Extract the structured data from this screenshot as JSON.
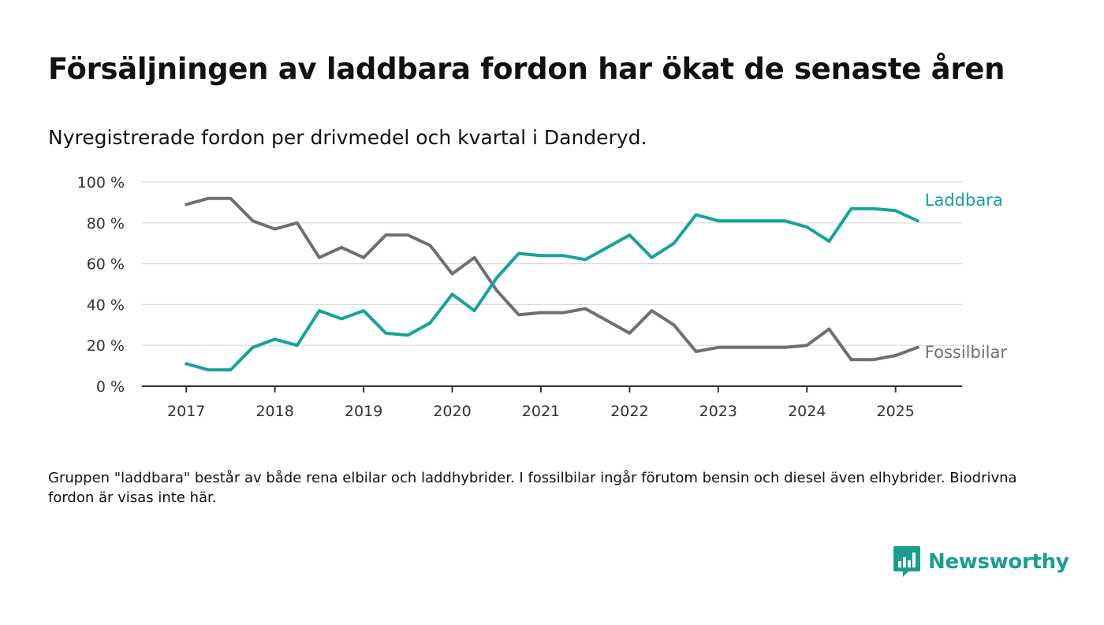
{
  "header": {
    "title": "Försäljningen av laddbara fordon har ökat de senaste åren",
    "subtitle": "Nyregistrerade fordon per drivmedel och kvartal i Danderyd."
  },
  "footer": {
    "note": "Gruppen \"laddbara\" består av både rena elbilar och laddhybrider. I fossilbilar ingår förutom bensin och diesel även elhybrider. Biodrivna fordon är visas inte här.",
    "brand_name": "Newsworthy"
  },
  "colors": {
    "laddbara": "#14a497",
    "fossil": "#6e6e78",
    "grid": "#d9d9d9",
    "axis": "#333333",
    "brand": "#199e8f"
  },
  "chart_data": {
    "type": "line",
    "title": "Försäljningen av laddbara fordon har ökat de senaste åren",
    "subtitle": "Nyregistrerade fordon per drivmedel och kvartal i Danderyd.",
    "xlabel": "",
    "ylabel": "",
    "ylim": [
      0,
      100
    ],
    "y_unit": "%",
    "y_ticks": [
      "0 %",
      "20 %",
      "40 %",
      "60 %",
      "80 %",
      "100 %"
    ],
    "x_ticks": [
      "2017",
      "2018",
      "2019",
      "2020",
      "2021",
      "2022",
      "2023",
      "2024",
      "2025"
    ],
    "xlim": [
      "2016-Q3",
      "2025-Q4"
    ],
    "grid": true,
    "legend": "inline labels at line ends",
    "x": [
      "2017-Q1",
      "2017-Q2",
      "2017-Q3",
      "2017-Q4",
      "2018-Q1",
      "2018-Q2",
      "2018-Q3",
      "2018-Q4",
      "2019-Q1",
      "2019-Q2",
      "2019-Q3",
      "2019-Q4",
      "2020-Q1",
      "2020-Q2",
      "2020-Q3",
      "2020-Q4",
      "2021-Q1",
      "2021-Q2",
      "2021-Q3",
      "2021-Q4",
      "2022-Q1",
      "2022-Q2",
      "2022-Q3",
      "2022-Q4",
      "2023-Q1",
      "2023-Q2",
      "2023-Q3",
      "2023-Q4",
      "2024-Q1",
      "2024-Q2",
      "2024-Q3",
      "2024-Q4",
      "2025-Q1",
      "2025-Q2"
    ],
    "series": [
      {
        "name": "Laddbara",
        "values": [
          11,
          8,
          8,
          19,
          23,
          20,
          37,
          33,
          37,
          26,
          25,
          31,
          45,
          37,
          53,
          65,
          64,
          64,
          62,
          68,
          74,
          63,
          70,
          84,
          81,
          81,
          81,
          81,
          78,
          71,
          87,
          87,
          86,
          81
        ]
      },
      {
        "name": "Fossilbilar",
        "values": [
          89,
          92,
          92,
          81,
          77,
          80,
          63,
          68,
          63,
          74,
          74,
          69,
          55,
          63,
          47,
          35,
          36,
          36,
          38,
          32,
          26,
          37,
          30,
          17,
          19,
          19,
          19,
          19,
          20,
          28,
          13,
          13,
          15,
          19
        ]
      }
    ]
  }
}
